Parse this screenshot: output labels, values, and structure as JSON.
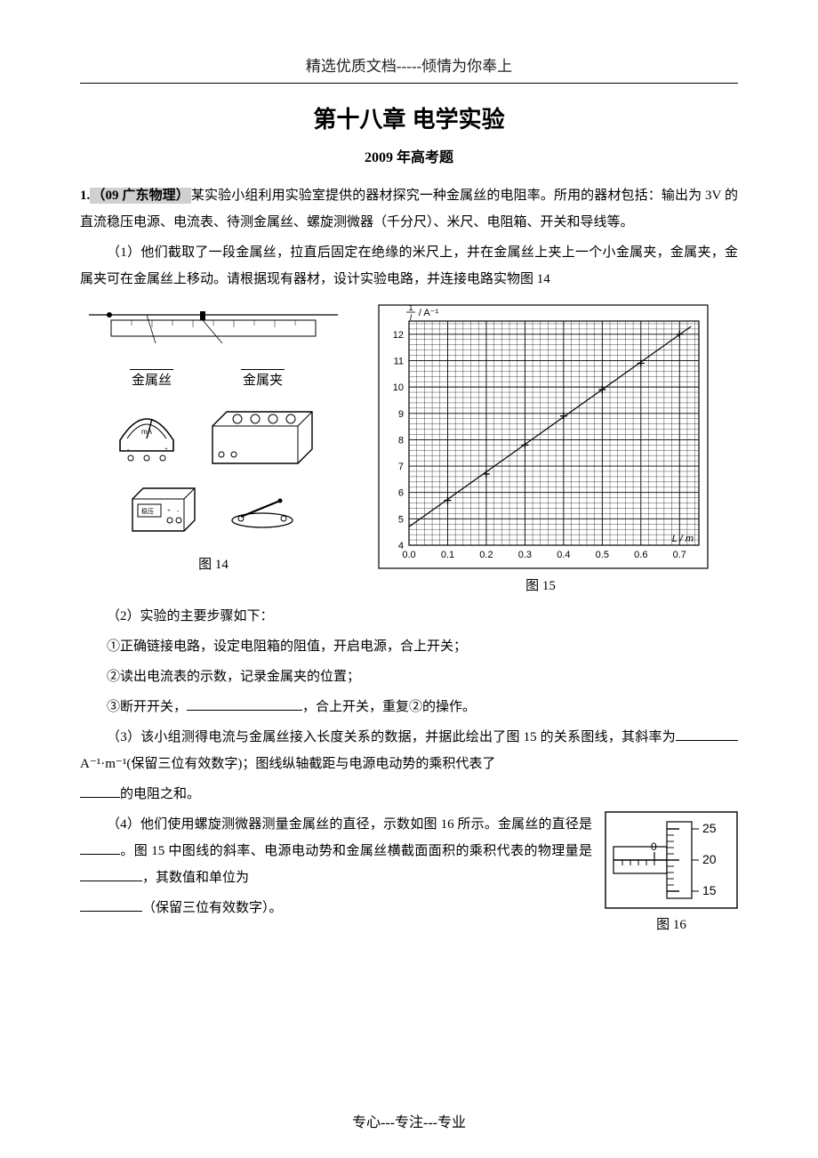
{
  "header": "精选优质文档-----倾情为你奉上",
  "title": "第十八章  电学实验",
  "subtitle": "2009 年高考题",
  "q1": {
    "label": "1.",
    "source": "（09  广东物理）",
    "intro": "某实验小组利用实验室提供的器材探究一种金属丝的电阻率。所用的器材包括：输出为 3V 的直流稳压电源、电流表、待测金属丝、螺旋测微器（千分尺）、米尺、电阻箱、开关和导线等。",
    "p1": "（1）他们截取了一段金属丝，拉直后固定在绝缘的米尺上，并在金属丝上夹上一个小金属夹，金属夹，金属夹可在金属丝上移动。请根据现有器材，设计实验电路，并连接电路实物图 14",
    "ruler_anno1": "金属丝",
    "ruler_anno2": "金属夹",
    "fig14": "图 14",
    "fig15": "图 15",
    "fig16": "图 16",
    "p2_head": "（2）实验的主要步骤如下：",
    "p2_s1": "①正确链接电路，设定电阻箱的阻值，开启电源，合上开关；",
    "p2_s2": "②读出电流表的示数，记录金属夹的位置；",
    "p2_s3a": "③断开开关，",
    "p2_s3b": "，合上开关，重复②的操作。",
    "p3a": "（3）该小组测得电流与金属丝接入长度关系的数据，并据此绘出了图 15 的关系图线，其斜率为",
    "p3_unit": "A⁻¹·m⁻¹",
    "p3_tail": "(保留三位有效数字)；图线纵轴截距与电源电动势的乘积代表了",
    "p3_end": "的电阻之和。",
    "p4a": "（4）他们使用螺旋测微器测量金属丝的直径，示数如图 16 所示。金属丝的直径是",
    "p4b": "。图 15 中图线的斜率、电源电动势和金属丝横截面面积的乘积代表的物理量是",
    "p4c": "，其数值和单位为",
    "p4d": "（保留三位有效数字）。"
  },
  "chart": {
    "type": "scatter-line",
    "y_label": "1/I / A⁻¹",
    "x_label": "L / m",
    "x_ticks": [
      0.0,
      0.1,
      0.2,
      0.3,
      0.4,
      0.5,
      0.6,
      0.7
    ],
    "y_ticks": [
      4,
      5,
      6,
      7,
      8,
      9,
      10,
      11,
      12
    ],
    "xlim": [
      0.0,
      0.75
    ],
    "ylim": [
      4,
      12.5
    ],
    "points": [
      [
        0.1,
        5.7
      ],
      [
        0.2,
        6.7
      ],
      [
        0.3,
        7.8
      ],
      [
        0.4,
        8.9
      ],
      [
        0.5,
        9.9
      ],
      [
        0.6,
        10.9
      ],
      [
        0.7,
        12.0
      ]
    ],
    "line": [
      [
        0.0,
        4.7
      ],
      [
        0.73,
        12.3
      ]
    ],
    "colors": {
      "background": "#ffffff",
      "axis": "#000000",
      "major_grid": "#000000",
      "minor_grid": "#000000",
      "line": "#000000",
      "marker": "#000000",
      "border": "#000000"
    },
    "marker_style": "plus",
    "marker_size": 4,
    "line_width": 1.2,
    "major_grid_width": 0.9,
    "minor_grid_width": 0.35,
    "minor_div": 5,
    "label_fontsize": 11,
    "tick_fontsize": 11
  },
  "micrometer": {
    "thimble_marks": [
      15,
      20,
      25
    ],
    "sleeve_value": 0,
    "border_color": "#000000",
    "bg": "#ffffff"
  },
  "footer": "专心---专注---专业"
}
